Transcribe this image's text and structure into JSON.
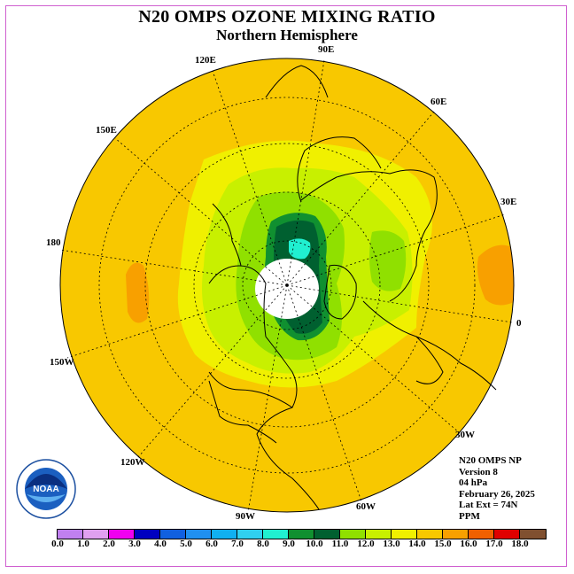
{
  "title": "N20 OMPS OZONE MIXING RATIO",
  "subtitle": "Northern Hemisphere",
  "longitude_labels": [
    "90E",
    "60E",
    "30E",
    "0",
    "30W",
    "60W",
    "90W",
    "120W",
    "150W",
    "180",
    "150E",
    "120E"
  ],
  "info": {
    "line1": "N20 OMPS NP",
    "line2": "Version 8",
    "line3": "04 hPa",
    "line4": "February 26, 2025",
    "line5": "Lat Ext = 74N",
    "line6": "PPM"
  },
  "logo_text": "NOAA",
  "colorbar": {
    "ticks": [
      "0.0",
      "1.0",
      "2.0",
      "3.0",
      "4.0",
      "5.0",
      "6.0",
      "7.0",
      "8.0",
      "9.0",
      "10.0",
      "11.0",
      "12.0",
      "13.0",
      "14.0",
      "15.0",
      "16.0",
      "17.0",
      "18.0"
    ],
    "colors": [
      "#c080f0",
      "#e0a0f0",
      "#f000f0",
      "#0000c0",
      "#1060e0",
      "#2090f0",
      "#10b0f0",
      "#30d0f0",
      "#20f0d0",
      "#109030",
      "#006030",
      "#90e000",
      "#c8f000",
      "#f0f000",
      "#f8c800",
      "#f8a000",
      "#f06000",
      "#e00000",
      "#805030"
    ]
  },
  "colors": {
    "background_field": "#f8c800",
    "polar_gap": "#ffffff",
    "frame": "#d060d0"
  }
}
